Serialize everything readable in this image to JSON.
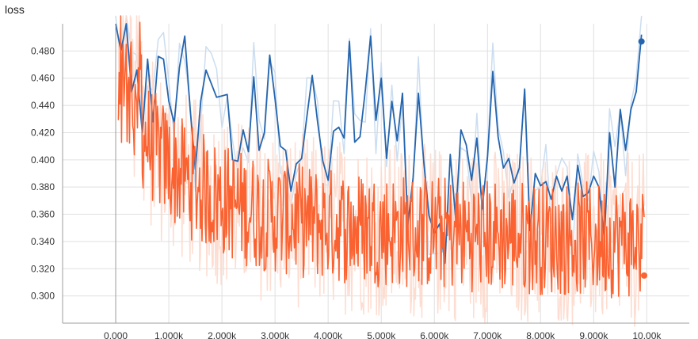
{
  "title": "loss",
  "chart_data": {
    "type": "line",
    "title": "loss",
    "xlabel": "",
    "ylabel": "",
    "xlim": [
      -1000,
      10800
    ],
    "ylim": [
      0.28,
      0.5
    ],
    "x_ticks": [
      0,
      1000,
      2000,
      3000,
      4000,
      5000,
      6000,
      7000,
      8000,
      9000,
      10000
    ],
    "x_tick_labels": [
      "0.000",
      "1.000k",
      "2.000k",
      "3.000k",
      "4.000k",
      "5.000k",
      "6.000k",
      "7.000k",
      "8.000k",
      "9.000k",
      "10.00k"
    ],
    "y_ticks": [
      0.3,
      0.32,
      0.34,
      0.36,
      0.38,
      0.4,
      0.42,
      0.44,
      0.46,
      0.48
    ],
    "y_tick_labels": [
      "0.300",
      "0.320",
      "0.340",
      "0.360",
      "0.380",
      "0.400",
      "0.420",
      "0.440",
      "0.460",
      "0.480"
    ],
    "grid": true,
    "colors": {
      "blue": "#2565ae",
      "blue_raw": "#c5d9ee",
      "orange": "#fa6331",
      "orange_raw": "#fdd9cc",
      "grid": "#e0e0e0",
      "axis": "#9e9e9e"
    },
    "series": [
      {
        "color": "blue",
        "end_marker": true,
        "smoothed_x": [
          0,
          100,
          200,
          300,
          400,
          500,
          600,
          700,
          800,
          900,
          1000,
          1100,
          1200,
          1300,
          1400,
          1500,
          1600,
          1700,
          1800,
          1900,
          2000,
          2100,
          2200,
          2300,
          2400,
          2500,
          2600,
          2700,
          2800,
          2900,
          3000,
          3100,
          3200,
          3300,
          3400,
          3500,
          3600,
          3700,
          3800,
          3900,
          4000,
          4100,
          4200,
          4300,
          4400,
          4500,
          4600,
          4700,
          4800,
          4900,
          5000,
          5100,
          5200,
          5300,
          5400,
          5500,
          5600,
          5700,
          5800,
          5900,
          6000,
          6100,
          6200,
          6300,
          6400,
          6500,
          6600,
          6700,
          6800,
          6900,
          7000,
          7100,
          7200,
          7300,
          7400,
          7500,
          7600,
          7700,
          7800,
          7900,
          8000,
          8100,
          8200,
          8300,
          8400,
          8500,
          8600,
          8700,
          8800,
          8900,
          9000,
          9100,
          9200,
          9300,
          9400,
          9500,
          9600,
          9700,
          9800,
          9900
        ],
        "smoothed_y": [
          0.5,
          0.48,
          0.5,
          0.45,
          0.466,
          0.42,
          0.474,
          0.428,
          0.476,
          0.474,
          0.443,
          0.427,
          0.468,
          0.491,
          0.438,
          0.393,
          0.443,
          0.466,
          0.456,
          0.446,
          0.447,
          0.448,
          0.4,
          0.399,
          0.422,
          0.406,
          0.461,
          0.407,
          0.42,
          0.477,
          0.445,
          0.41,
          0.407,
          0.377,
          0.397,
          0.401,
          0.432,
          0.462,
          0.428,
          0.399,
          0.385,
          0.421,
          0.424,
          0.416,
          0.487,
          0.413,
          0.417,
          0.451,
          0.491,
          0.429,
          0.46,
          0.401,
          0.443,
          0.414,
          0.449,
          0.352,
          0.387,
          0.449,
          0.399,
          0.359,
          0.346,
          0.353,
          0.324,
          0.404,
          0.357,
          0.422,
          0.411,
          0.385,
          0.416,
          0.364,
          0.402,
          0.465,
          0.417,
          0.394,
          0.401,
          0.383,
          0.394,
          0.452,
          0.348,
          0.39,
          0.381,
          0.384,
          0.371,
          0.388,
          0.377,
          0.388,
          0.356,
          0.396,
          0.373,
          0.376,
          0.388,
          0.38,
          0.342,
          0.42,
          0.38,
          0.437,
          0.407,
          0.437,
          0.45,
          0.492
        ],
        "final": {
          "x": 9900,
          "y": 0.487
        }
      },
      {
        "color": "orange",
        "end_marker": true,
        "final": {
          "x": 9950,
          "y": 0.315
        }
      }
    ]
  }
}
